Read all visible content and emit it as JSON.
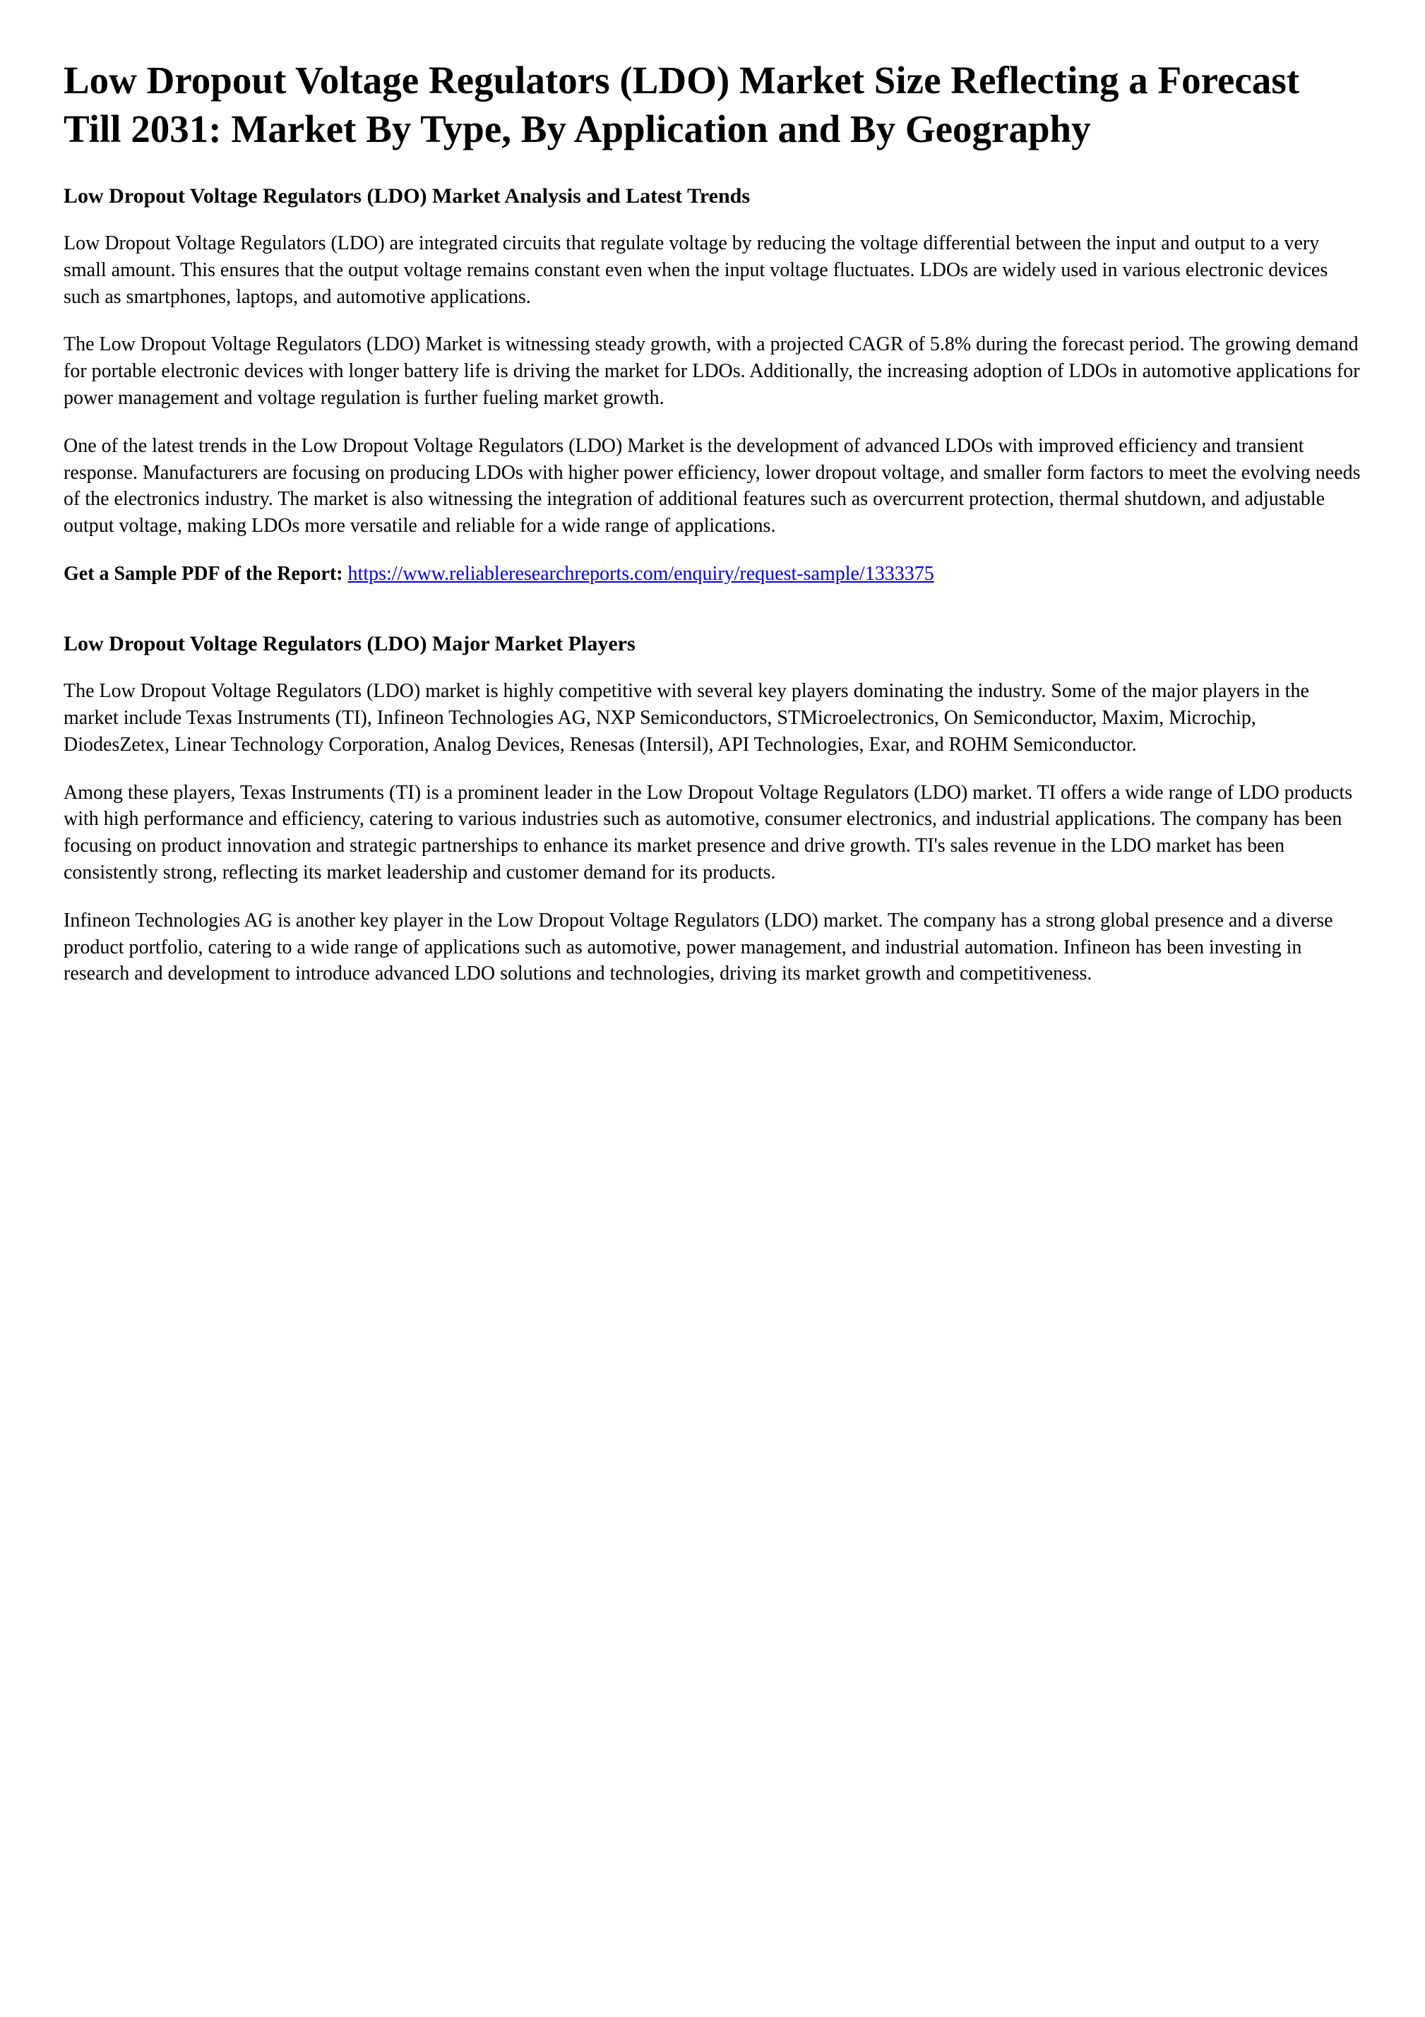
{
  "title": "Low Dropout Voltage Regulators (LDO) Market Size Reflecting a Forecast Till 2031: Market By Type, By Application and By Geography",
  "section1": {
    "heading": "Low Dropout Voltage Regulators (LDO) Market Analysis and Latest Trends",
    "p1": "Low Dropout Voltage Regulators (LDO) are integrated circuits that regulate voltage by reducing the voltage differential between the input and output to a very small amount. This ensures that the output voltage remains constant even when the input voltage fluctuates. LDOs are widely used in various electronic devices such as smartphones, laptops, and automotive applications.",
    "p2": "The Low Dropout Voltage Regulators (LDO) Market is witnessing steady growth, with a projected CAGR of 5.8% during the forecast period. The growing demand for portable electronic devices with longer battery life is driving the market for LDOs. Additionally, the increasing adoption of LDOs in automotive applications for power management and voltage regulation is further fueling market growth.",
    "p3": "One of the latest trends in the Low Dropout Voltage Regulators (LDO) Market is the development of advanced LDOs with improved efficiency and transient response. Manufacturers are focusing on producing LDOs with higher power efficiency, lower dropout voltage, and smaller form factors to meet the evolving needs of the electronics industry. The market is also witnessing the integration of additional features such as overcurrent protection, thermal shutdown, and adjustable output voltage, making LDOs more versatile and reliable for a wide range of applications."
  },
  "cta": {
    "label": "Get a Sample PDF of the Report:  ",
    "link_text": "https://www.reliableresearchreports.com/enquiry/request-sample/1333375"
  },
  "section2": {
    "heading": "Low Dropout Voltage Regulators (LDO) Major Market Players",
    "p1": "The Low Dropout Voltage Regulators (LDO) market is highly competitive with several key players dominating the industry. Some of the major players in the market include Texas Instruments (TI), Infineon Technologies AG, NXP Semiconductors, STMicroelectronics, On Semiconductor, Maxim, Microchip, DiodesZetex, Linear Technology Corporation, Analog Devices, Renesas (Intersil), API Technologies, Exar, and ROHM Semiconductor.",
    "p2": "Among these players, Texas Instruments (TI) is a prominent leader in the Low Dropout Voltage Regulators (LDO) market. TI offers a wide range of LDO products with high performance and efficiency, catering to various industries such as automotive, consumer electronics, and industrial applications. The company has been focusing on product innovation and strategic partnerships to enhance its market presence and drive growth. TI's sales revenue in the LDO market has been consistently strong, reflecting its market leadership and customer demand for its products.",
    "p3": "Infineon Technologies AG is another key player in the Low Dropout Voltage Regulators (LDO) market. The company has a strong global presence and a diverse product portfolio, catering to a wide range of applications such as automotive, power management, and industrial automation. Infineon has been investing in research and development to introduce advanced LDO solutions and technologies, driving its market growth and competitiveness."
  }
}
